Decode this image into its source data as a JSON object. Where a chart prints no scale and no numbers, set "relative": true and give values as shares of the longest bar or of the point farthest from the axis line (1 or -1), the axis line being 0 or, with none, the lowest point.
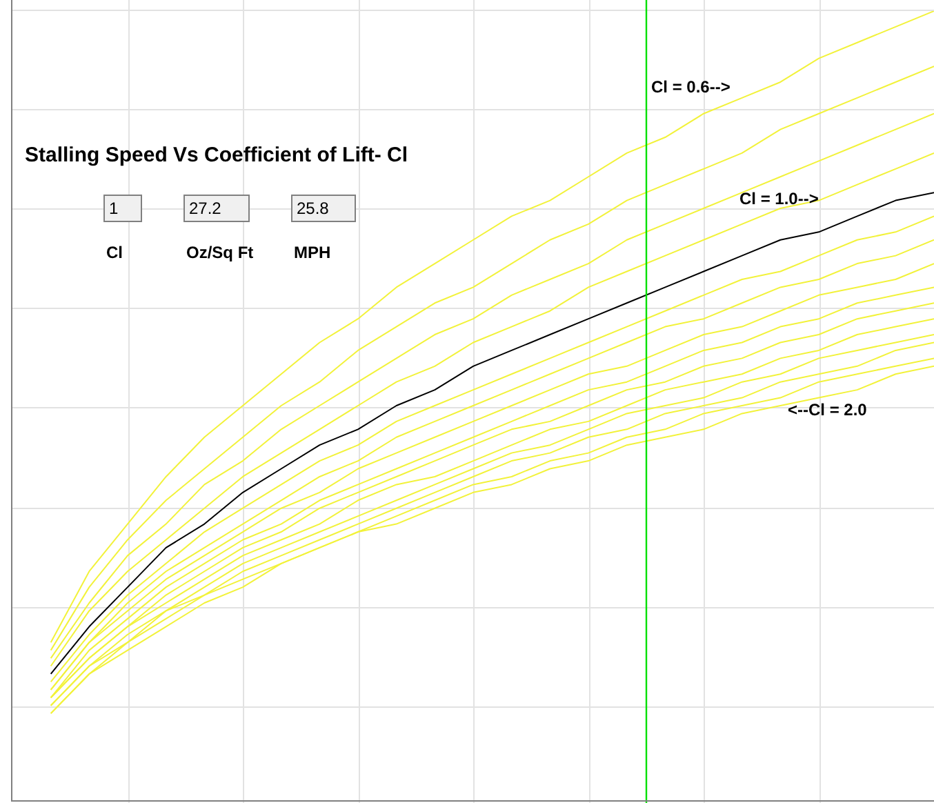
{
  "chart_data": {
    "type": "line",
    "title": "Stalling Speed Vs Coefficient of Lift- Cl",
    "relative": true,
    "grid": true,
    "marker": "none",
    "line_style": "solid",
    "categories": [
      null,
      null,
      null,
      null,
      null,
      null,
      null,
      null,
      null,
      null,
      null,
      null,
      null,
      null,
      null,
      null,
      null,
      null,
      null,
      null,
      null,
      null,
      null,
      null,
      null
    ],
    "series": [
      {
        "color": "#f2f23a",
        "values": [
          null,
          0.2,
          0.29,
          0.35,
          0.41,
          0.46,
          0.5,
          0.54,
          0.58,
          0.61,
          0.65,
          0.68,
          0.71,
          0.74,
          0.76,
          0.79,
          0.82,
          0.84,
          0.87,
          0.89,
          0.91,
          0.94,
          0.96,
          0.98,
          1.0
        ]
      },
      {
        "color": "#f2f23a",
        "values": [
          null,
          0.19,
          0.27,
          0.33,
          0.38,
          0.42,
          0.46,
          0.5,
          0.53,
          0.57,
          0.6,
          0.63,
          0.65,
          0.68,
          0.71,
          0.73,
          0.76,
          0.78,
          0.8,
          0.82,
          0.85,
          0.87,
          0.89,
          0.91,
          0.93
        ]
      },
      {
        "color": "#f2f23a",
        "values": [
          null,
          0.18,
          0.25,
          0.31,
          0.35,
          0.4,
          0.43,
          0.47,
          0.5,
          0.53,
          0.56,
          0.59,
          0.61,
          0.64,
          0.66,
          0.68,
          0.71,
          0.73,
          0.75,
          0.77,
          0.79,
          0.81,
          0.83,
          0.85,
          0.87
        ]
      },
      {
        "color": "#f2f23a",
        "values": [
          null,
          0.17,
          0.24,
          0.29,
          0.33,
          0.37,
          0.41,
          0.44,
          0.47,
          0.5,
          0.53,
          0.55,
          0.58,
          0.6,
          0.62,
          0.65,
          0.67,
          0.69,
          0.71,
          0.73,
          0.75,
          0.76,
          0.78,
          0.8,
          0.82
        ]
      },
      {
        "color": "#000000",
        "values": [
          null,
          0.16,
          0.22,
          0.27,
          0.32,
          0.35,
          0.39,
          0.42,
          0.45,
          0.47,
          0.5,
          0.52,
          0.55,
          0.57,
          0.59,
          0.61,
          0.63,
          0.65,
          0.67,
          0.69,
          0.71,
          0.72,
          0.74,
          0.76,
          0.77
        ]
      },
      {
        "color": "#f2f23a",
        "values": [
          null,
          0.15,
          0.21,
          0.26,
          0.3,
          0.34,
          0.37,
          0.4,
          0.43,
          0.45,
          0.48,
          0.5,
          0.52,
          0.54,
          0.56,
          0.58,
          0.6,
          0.62,
          0.64,
          0.66,
          0.67,
          0.69,
          0.71,
          0.72,
          0.74
        ]
      },
      {
        "color": "#f2f23a",
        "values": [
          null,
          0.14,
          0.2,
          0.25,
          0.29,
          0.32,
          0.35,
          0.38,
          0.41,
          0.43,
          0.46,
          0.48,
          0.5,
          0.52,
          0.54,
          0.56,
          0.58,
          0.6,
          0.61,
          0.63,
          0.65,
          0.66,
          0.68,
          0.69,
          0.71
        ]
      },
      {
        "color": "#f2f23a",
        "values": [
          null,
          0.14,
          0.2,
          0.24,
          0.28,
          0.31,
          0.34,
          0.37,
          0.39,
          0.42,
          0.44,
          0.46,
          0.48,
          0.5,
          0.52,
          0.54,
          0.55,
          0.57,
          0.59,
          0.6,
          0.62,
          0.64,
          0.65,
          0.66,
          0.68
        ]
      },
      {
        "color": "#f2f23a",
        "values": [
          null,
          0.13,
          0.19,
          0.23,
          0.27,
          0.3,
          0.33,
          0.35,
          0.38,
          0.4,
          0.42,
          0.44,
          0.46,
          0.48,
          0.5,
          0.52,
          0.53,
          0.55,
          0.57,
          0.58,
          0.6,
          0.61,
          0.63,
          0.64,
          0.65
        ]
      },
      {
        "color": "#f2f23a",
        "values": [
          null,
          0.13,
          0.18,
          0.22,
          0.26,
          0.29,
          0.32,
          0.34,
          0.37,
          0.39,
          0.41,
          0.43,
          0.45,
          0.47,
          0.48,
          0.5,
          0.52,
          0.53,
          0.55,
          0.56,
          0.58,
          0.59,
          0.61,
          0.62,
          0.63
        ]
      },
      {
        "color": "#f2f23a",
        "values": [
          null,
          0.13,
          0.18,
          0.22,
          0.25,
          0.28,
          0.31,
          0.33,
          0.35,
          0.38,
          0.4,
          0.41,
          0.43,
          0.45,
          0.47,
          0.48,
          0.5,
          0.52,
          0.53,
          0.54,
          0.56,
          0.57,
          0.59,
          0.6,
          0.61
        ]
      },
      {
        "color": "#f2f23a",
        "values": [
          null,
          0.12,
          0.17,
          0.21,
          0.24,
          0.27,
          0.3,
          0.32,
          0.34,
          0.36,
          0.38,
          0.4,
          0.42,
          0.44,
          0.45,
          0.47,
          0.49,
          0.5,
          0.51,
          0.53,
          0.54,
          0.56,
          0.57,
          0.58,
          0.59
        ]
      },
      {
        "color": "#f2f23a",
        "values": [
          null,
          0.12,
          0.17,
          0.2,
          0.24,
          0.26,
          0.29,
          0.31,
          0.33,
          0.35,
          0.37,
          0.39,
          0.41,
          0.43,
          0.44,
          0.46,
          0.47,
          0.49,
          0.5,
          0.51,
          0.53,
          0.54,
          0.55,
          0.57,
          0.58
        ]
      },
      {
        "color": "#f2f23a",
        "values": [
          null,
          0.11,
          0.16,
          0.2,
          0.23,
          0.26,
          0.28,
          0.3,
          0.32,
          0.34,
          0.36,
          0.38,
          0.4,
          0.41,
          0.43,
          0.44,
          0.46,
          0.47,
          0.49,
          0.5,
          0.51,
          0.53,
          0.54,
          0.55,
          0.56
        ]
      },
      {
        "color": "#f2f23a",
        "values": [
          null,
          0.11,
          0.16,
          0.19,
          0.22,
          0.25,
          0.27,
          0.3,
          0.32,
          0.34,
          0.35,
          0.37,
          0.39,
          0.4,
          0.42,
          0.43,
          0.45,
          0.46,
          0.47,
          0.49,
          0.5,
          0.51,
          0.52,
          0.54,
          0.55
        ]
      }
    ],
    "annotations": [
      "Cl = 0.6-->",
      "Cl = 1.0-->",
      "<--Cl = 2.0",
      "1",
      "27.2",
      "25.8",
      "Cl",
      "Oz/Sq Ft",
      "MPH"
    ]
  }
}
